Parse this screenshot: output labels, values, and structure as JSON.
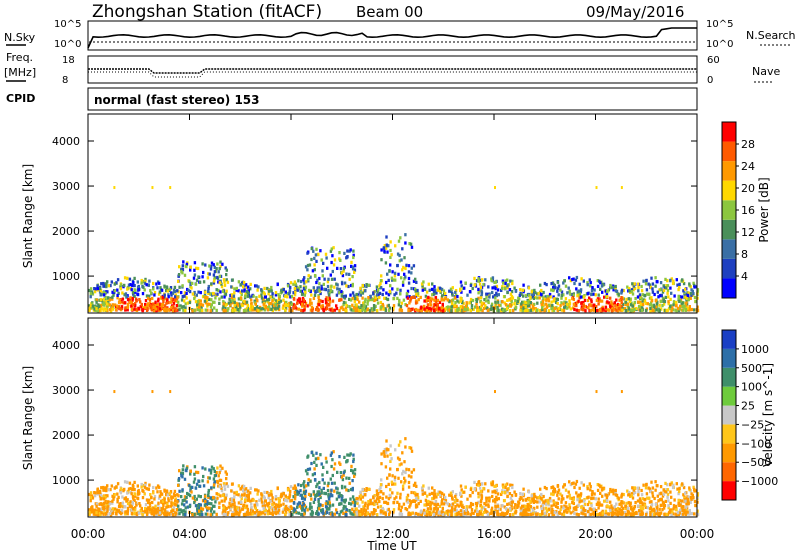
{
  "header": {
    "station": "Zhongshan Station (fitACF)",
    "beam": "Beam 00",
    "date": "09/May/2016"
  },
  "aux_panels": {
    "nsky": {
      "label": "N.Sky",
      "ticks": [
        "10^5",
        "10^0"
      ]
    },
    "nsearch": {
      "label": "N.Search",
      "ticks": [
        "10^5",
        "10^0"
      ]
    },
    "freq": {
      "label_line1": "Freq.",
      "label_line2": "[MHz]",
      "ticks": [
        "18",
        "8"
      ]
    },
    "nave": {
      "label": "Nave",
      "ticks": [
        "60",
        "0"
      ]
    },
    "cpid": {
      "label": "CPID",
      "value": "normal (fast stereo) 153"
    }
  },
  "chart_data": [
    {
      "type": "heatmap",
      "name": "Power",
      "xlabel": "Time UT",
      "ylabel": "Slant Range [km]",
      "x_ticks": [
        "00:00",
        "04:00",
        "08:00",
        "12:00",
        "16:00",
        "20:00",
        "00:00"
      ],
      "x_range_hours": [
        0,
        24
      ],
      "y_ticks": [
        "1000",
        "2000",
        "3000",
        "4000"
      ],
      "ylim": [
        180,
        4600
      ],
      "colorbar": {
        "label": "Power [dB]",
        "ticks": [
          "4",
          "8",
          "12",
          "16",
          "20",
          "24",
          "28"
        ],
        "range": [
          0,
          32
        ],
        "colors": [
          "#0000ff",
          "#1e40c0",
          "#3a6fa5",
          "#4a8f5a",
          "#8cc63f",
          "#ffd800",
          "#ff9900",
          "#ff5a00",
          "#ff0000"
        ]
      },
      "dominant_echo_region_km": [
        180,
        1000
      ],
      "high_power_intervals_hours": [
        [
          1.0,
          3.5
        ],
        [
          8.0,
          10.0
        ],
        [
          12.5,
          14.0
        ]
      ]
    },
    {
      "type": "heatmap",
      "name": "Velocity",
      "xlabel": "Time UT",
      "ylabel": "Slant Range [km]",
      "x_ticks": [
        "00:00",
        "04:00",
        "08:00",
        "12:00",
        "16:00",
        "20:00",
        "00:00"
      ],
      "x_range_hours": [
        0,
        24
      ],
      "y_ticks": [
        "1000",
        "2000",
        "3000",
        "4000"
      ],
      "ylim": [
        180,
        4600
      ],
      "colorbar": {
        "label": "Velocity [m s^-1]",
        "ticks": [
          "1000",
          "500",
          "100",
          "25",
          "−25",
          "−100",
          "−500",
          "−1000"
        ],
        "colors": [
          "#1a3fc4",
          "#2d6fa8",
          "#3f8f6a",
          "#6ecb3c",
          "#c8c8c8",
          "#ffc61a",
          "#ff9900",
          "#ff6600",
          "#ff0000"
        ]
      },
      "dominant_echo_region_km": [
        180,
        1000
      ]
    }
  ]
}
